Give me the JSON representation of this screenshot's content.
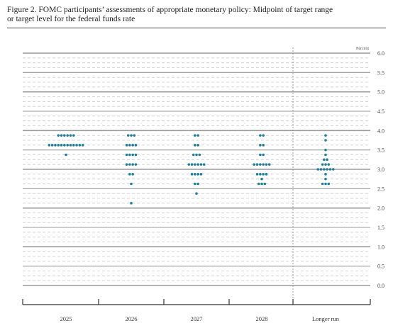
{
  "figure": {
    "title_line1": "Figure 2. FOMC participants’ assessments of appropriate monetary policy: Midpoint of target range",
    "title_line2": "or target level for the federal funds rate"
  },
  "chart_data": {
    "type": "scatter",
    "title": "Figure 2. FOMC participants’ assessments of appropriate monetary policy: Midpoint of target range or target level for the federal funds rate",
    "unit_label": "Percent",
    "categories": [
      "2025",
      "2026",
      "2027",
      "2028",
      "Longer run"
    ],
    "ylim": [
      0,
      6
    ],
    "y_ticks": [
      "6.0",
      "5.5",
      "5.0",
      "4.5",
      "4.0",
      "3.5",
      "3.0",
      "2.5",
      "2.0",
      "1.5",
      "1.0",
      "0.5",
      "0.0"
    ],
    "grid": true,
    "dot_color": "#1f7f99",
    "series": [
      {
        "category": "2025",
        "counts": [
          {
            "y": 3.875,
            "n": 6
          },
          {
            "y": 3.625,
            "n": 12
          },
          {
            "y": 3.375,
            "n": 1
          }
        ]
      },
      {
        "category": "2026",
        "counts": [
          {
            "y": 3.875,
            "n": 3
          },
          {
            "y": 3.625,
            "n": 4
          },
          {
            "y": 3.375,
            "n": 4
          },
          {
            "y": 3.125,
            "n": 4
          },
          {
            "y": 2.875,
            "n": 2
          },
          {
            "y": 2.625,
            "n": 1
          },
          {
            "y": 2.125,
            "n": 1
          }
        ]
      },
      {
        "category": "2027",
        "counts": [
          {
            "y": 3.875,
            "n": 2
          },
          {
            "y": 3.625,
            "n": 2
          },
          {
            "y": 3.375,
            "n": 3
          },
          {
            "y": 3.125,
            "n": 6
          },
          {
            "y": 2.875,
            "n": 4
          },
          {
            "y": 2.625,
            "n": 2
          },
          {
            "y": 2.375,
            "n": 1
          }
        ]
      },
      {
        "category": "2028",
        "counts": [
          {
            "y": 3.875,
            "n": 2
          },
          {
            "y": 3.625,
            "n": 2
          },
          {
            "y": 3.375,
            "n": 2
          },
          {
            "y": 3.125,
            "n": 6
          },
          {
            "y": 2.875,
            "n": 4
          },
          {
            "y": 2.75,
            "n": 1
          },
          {
            "y": 2.625,
            "n": 3
          }
        ]
      },
      {
        "category": "Longer run",
        "counts": [
          {
            "y": 3.875,
            "n": 1
          },
          {
            "y": 3.75,
            "n": 1
          },
          {
            "y": 3.5,
            "n": 1
          },
          {
            "y": 3.375,
            "n": 1
          },
          {
            "y": 3.25,
            "n": 2
          },
          {
            "y": 3.125,
            "n": 3
          },
          {
            "y": 3.0,
            "n": 6
          },
          {
            "y": 2.875,
            "n": 1
          },
          {
            "y": 2.75,
            "n": 1
          },
          {
            "y": 2.625,
            "n": 3
          }
        ]
      }
    ]
  }
}
